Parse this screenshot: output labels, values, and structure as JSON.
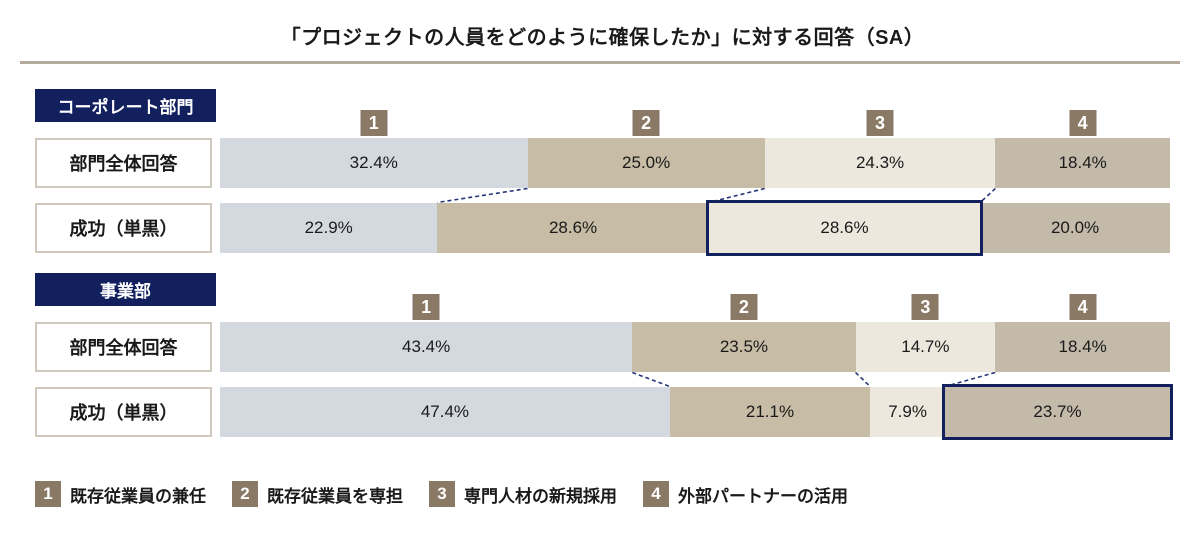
{
  "title": "「プロジェクトの人員をどのように確保したか」に対する回答（SA）",
  "colors": {
    "navy": "#12205e",
    "badge": "#8a7964",
    "divider": "#b3a99c",
    "label_border": "#cfc8bc",
    "highlight_border": "#12205e",
    "connector": "#27357a",
    "segments": [
      "#d3d9de",
      "#c7bca5",
      "#ede8de",
      "#c3baa9"
    ],
    "value_text": "#1a1a1a"
  },
  "chart_data": {
    "type": "bar",
    "subtype": "horizontal-100pct-stacked",
    "unit": "%",
    "title": "「プロジェクトの人員をどのように確保したか」に対する回答（SA）",
    "categories": [
      "既存従業員の兼任",
      "既存従業員を専担",
      "専門人材の新規採用",
      "外部パートナーの活用"
    ],
    "legend_position": "bottom",
    "xlim": [
      0,
      100
    ],
    "sections": [
      {
        "name": "コーポレート部門",
        "rows": [
          {
            "label": "部門全体回答",
            "values": [
              32.4,
              25.0,
              24.3,
              18.4
            ],
            "highlight": null
          },
          {
            "label": "成功（単黒）",
            "values": [
              22.9,
              28.6,
              28.6,
              20.0
            ],
            "highlight": 2
          }
        ]
      },
      {
        "name": "事業部",
        "rows": [
          {
            "label": "部門全体回答",
            "values": [
              43.4,
              23.5,
              14.7,
              18.4
            ],
            "highlight": null
          },
          {
            "label": "成功（単黒）",
            "values": [
              47.4,
              21.1,
              7.9,
              23.7
            ],
            "highlight": 3
          }
        ]
      }
    ]
  },
  "legend": {
    "items": [
      {
        "number": "1",
        "label": "既存従業員の兼任"
      },
      {
        "number": "2",
        "label": "既存従業員を専担"
      },
      {
        "number": "3",
        "label": "専門人材の新規採用"
      },
      {
        "number": "4",
        "label": "外部パートナーの活用"
      }
    ]
  }
}
